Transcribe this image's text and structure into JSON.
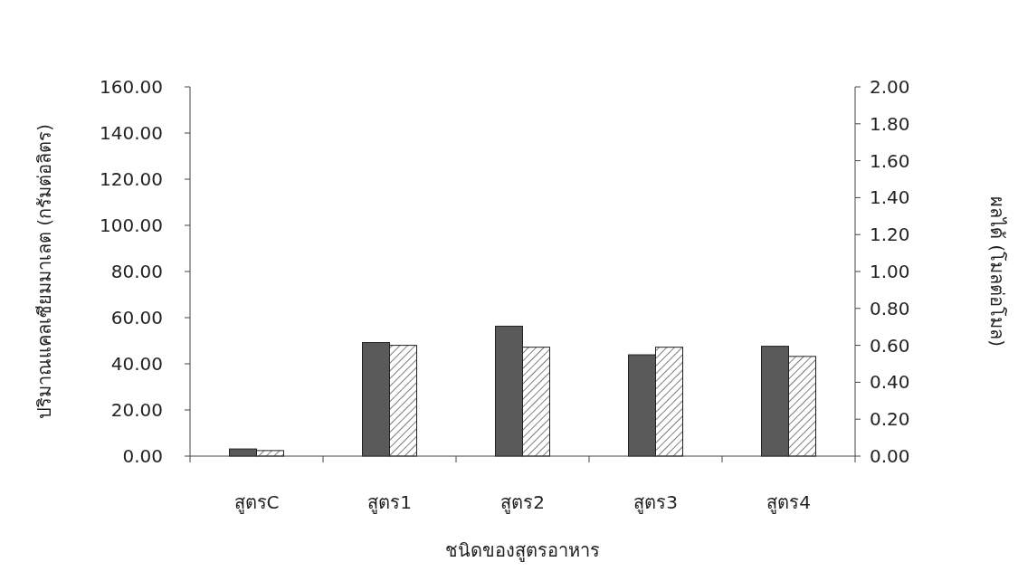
{
  "chart_data": {
    "type": "bar",
    "xlabel": "ชนิดของสูตรอาหาร",
    "ylabel": "ปริมาณแคลเซียมมาเลต (กรัมต่อลิตร)",
    "y2label": "ผลได้ (โมลต่อโมล)",
    "categories": [
      "สูตรC",
      "สูตร1",
      "สูตร2",
      "สูตร3",
      "สูตร4"
    ],
    "series": [
      {
        "color": "#5a5a5a",
        "values": [
          3.1,
          49.2,
          56.3,
          43.9,
          47.6
        ]
      },
      {
        "color": "#ffffff",
        "axis": "y2",
        "values": [
          0.03,
          0.6,
          0.59,
          0.59,
          0.54
        ]
      }
    ],
    "ylim": [
      0,
      160
    ],
    "yticks": [
      {
        "value": 0,
        "label": "0.00"
      },
      {
        "value": 20,
        "label": "20.00"
      },
      {
        "value": 40,
        "label": "40.00"
      },
      {
        "value": 60,
        "label": "60.00"
      },
      {
        "value": 80,
        "label": "80.00"
      },
      {
        "value": 100,
        "label": "100.00"
      },
      {
        "value": 120,
        "label": "120.00"
      },
      {
        "value": 140,
        "label": "140.00"
      },
      {
        "value": 160,
        "label": "160.00"
      }
    ],
    "y2lim": [
      0,
      2
    ],
    "y2ticks": [
      {
        "value": 0,
        "label": "0.00"
      },
      {
        "value": 0.2,
        "label": "0.20"
      },
      {
        "value": 0.4,
        "label": "0.40"
      },
      {
        "value": 0.6,
        "label": "0.60"
      },
      {
        "value": 0.8,
        "label": "0.80"
      },
      {
        "value": 1,
        "label": "1.00"
      },
      {
        "value": 1.2,
        "label": "1.20"
      },
      {
        "value": 1.4,
        "label": "1.40"
      },
      {
        "value": 1.6,
        "label": "1.60"
      },
      {
        "value": 1.8,
        "label": "1.80"
      },
      {
        "value": 2,
        "label": "2.00"
      }
    ],
    "grid": false
  }
}
